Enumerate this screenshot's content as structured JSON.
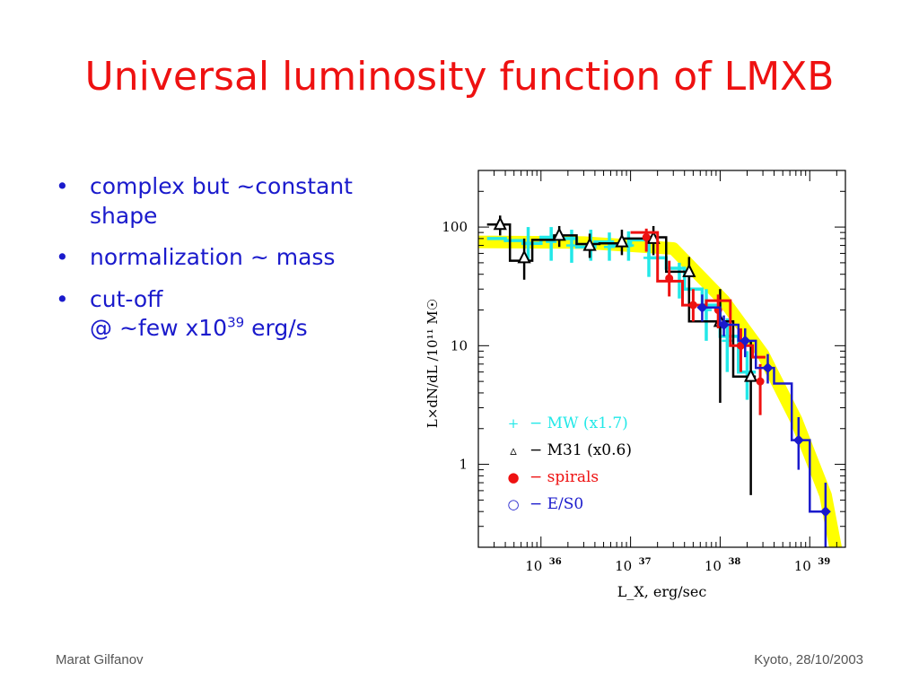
{
  "slide": {
    "title": "Universal luminosity function of LMXB",
    "bullets": [
      {
        "lines": [
          "complex but ~constant",
          "shape"
        ]
      },
      {
        "lines": [
          "normalization ~ mass"
        ]
      },
      {
        "lines": [
          "cut-off",
          "@ ~few x10"
        ],
        "sup": "39",
        "tail": " erg/s"
      }
    ],
    "footer_left": "Marat Gilfanov",
    "footer_right": "Kyoto, 28/10/2003"
  },
  "chart_data": {
    "type": "line",
    "xscale": "log",
    "yscale": "log",
    "xlim": [
      2e+35,
      2.5e+39
    ],
    "ylim": [
      0.2,
      300
    ],
    "xlabel": "L_X, erg/sec",
    "ylabel": "L×dN/dL /10¹¹ M☉",
    "xticks": [
      {
        "value": 1e+36,
        "base": "10",
        "exp": "36"
      },
      {
        "value": 1e+37,
        "base": "10",
        "exp": "37"
      },
      {
        "value": 1e+38,
        "base": "10",
        "exp": "38"
      },
      {
        "value": 1e+39,
        "base": "10",
        "exp": "39"
      }
    ],
    "yticks": [
      {
        "value": 1,
        "label": "1"
      },
      {
        "value": 10,
        "label": "10"
      },
      {
        "value": 100,
        "label": "100"
      }
    ],
    "grid": false,
    "legend_position": "lower-left",
    "band": {
      "color": "#ffff00",
      "x": [
        2e+35,
        3e+36,
        3e+37,
        1.1e+38,
        3e+38,
        7e+38,
        1.5e+39,
        2.2e+39
      ],
      "y": [
        75,
        74,
        66,
        24,
        8.5,
        2.4,
        0.55,
        0.12
      ]
    },
    "series": [
      {
        "name": "MW (x1.7)",
        "legend_symbol": "+",
        "legend_label": "− MW (x1.7)",
        "color": "#22e8e8",
        "marker": "plus",
        "steps": [
          [
            2.5e+35,
            4e+35,
            80
          ],
          [
            4e+35,
            6.3e+35,
            77
          ],
          [
            6.3e+35,
            1e+36,
            73
          ],
          [
            1e+36,
            1.6e+36,
            82
          ],
          [
            1.6e+36,
            2.5e+36,
            80
          ],
          [
            2.5e+36,
            4e+36,
            68
          ],
          [
            4e+36,
            6.3e+36,
            75
          ],
          [
            6.3e+36,
            1e+37,
            70
          ],
          [
            1e+37,
            1.6e+37,
            78
          ],
          [
            1.6e+37,
            2.5e+37,
            55
          ],
          [
            2.5e+37,
            4e+37,
            45
          ],
          [
            4e+37,
            6.3e+37,
            30
          ],
          [
            6.3e+37,
            1e+38,
            22
          ],
          [
            1e+38,
            1.6e+38,
            12
          ],
          [
            1.6e+38,
            2.5e+38,
            6
          ]
        ],
        "points": [
          {
            "x": 7.2e+35,
            "y": 72,
            "lo": 50,
            "hi": 100
          },
          {
            "x": 1.3e+36,
            "y": 75,
            "lo": 52,
            "hi": 100
          },
          {
            "x": 2.2e+36,
            "y": 70,
            "lo": 50,
            "hi": 95
          },
          {
            "x": 3.6e+36,
            "y": 72,
            "lo": 52,
            "hi": 95
          },
          {
            "x": 5.8e+36,
            "y": 68,
            "lo": 52,
            "hi": 90
          },
          {
            "x": 9.5e+36,
            "y": 70,
            "lo": 52,
            "hi": 92
          },
          {
            "x": 1.6e+37,
            "y": 55,
            "lo": 38,
            "hi": 75
          },
          {
            "x": 3.5e+37,
            "y": 35,
            "lo": 25,
            "hi": 50
          },
          {
            "x": 7e+37,
            "y": 20,
            "lo": 11,
            "hi": 30
          },
          {
            "x": 1.2e+38,
            "y": 11,
            "lo": 6,
            "hi": 17
          },
          {
            "x": 2e+38,
            "y": 6,
            "lo": 3.5,
            "hi": 9
          }
        ]
      },
      {
        "name": "M31 (x0.6)",
        "legend_symbol": "▵",
        "legend_label": "− M31 (x0.6)",
        "color": "#000000",
        "marker": "triangle",
        "steps": [
          [
            2.5e+35,
            4.5e+35,
            105
          ],
          [
            4.5e+35,
            8e+35,
            52
          ],
          [
            8e+35,
            1.4e+36,
            78
          ],
          [
            1.4e+36,
            2.5e+36,
            85
          ],
          [
            2.5e+36,
            4.5e+36,
            72
          ],
          [
            4.5e+36,
            8e+36,
            73
          ],
          [
            8e+36,
            1.4e+37,
            80
          ],
          [
            1.4e+37,
            2.5e+37,
            82
          ],
          [
            2.5e+37,
            4.5e+37,
            42
          ],
          [
            4.5e+37,
            8e+37,
            16
          ],
          [
            8e+37,
            1.4e+38,
            16
          ],
          [
            1.4e+38,
            2.5e+38,
            5.5
          ]
        ],
        "points": [
          {
            "x": 3.5e+35,
            "y": 105,
            "lo": 85,
            "hi": 125
          },
          {
            "x": 6.5e+35,
            "y": 55,
            "lo": 36,
            "hi": 80
          },
          {
            "x": 1.6e+36,
            "y": 85,
            "lo": 68,
            "hi": 102
          },
          {
            "x": 3.5e+36,
            "y": 70,
            "lo": 55,
            "hi": 88
          },
          {
            "x": 8e+36,
            "y": 75,
            "lo": 58,
            "hi": 95
          },
          {
            "x": 1.8e+37,
            "y": 80,
            "lo": 58,
            "hi": 102
          },
          {
            "x": 4.5e+37,
            "y": 42,
            "lo": 28,
            "hi": 56
          },
          {
            "x": 1e+38,
            "y": 16,
            "lo": 3.3,
            "hi": 30
          },
          {
            "x": 2.2e+38,
            "y": 5.5,
            "lo": 0.55,
            "hi": 11
          }
        ]
      },
      {
        "name": "spirals",
        "legend_symbol": "●",
        "legend_label": "− spirals",
        "color": "#ee1111",
        "marker": "dot",
        "steps": [
          [
            1e+37,
            2e+37,
            90
          ],
          [
            2e+37,
            3.8e+37,
            35
          ],
          [
            3.8e+37,
            7e+37,
            22
          ],
          [
            7e+37,
            1.3e+38,
            24
          ],
          [
            1.3e+38,
            2.3e+38,
            10
          ],
          [
            2.3e+38,
            3.2e+38,
            8
          ]
        ],
        "points": [
          {
            "x": 1.5e+37,
            "y": 82,
            "lo": 62,
            "hi": 97
          },
          {
            "x": 2.7e+37,
            "y": 37,
            "lo": 26,
            "hi": 52
          },
          {
            "x": 5e+37,
            "y": 22,
            "lo": 16,
            "hi": 30
          },
          {
            "x": 9.5e+37,
            "y": 20,
            "lo": 14,
            "hi": 27
          },
          {
            "x": 1.7e+38,
            "y": 10,
            "lo": 6,
            "hi": 14
          },
          {
            "x": 2.8e+38,
            "y": 5,
            "lo": 2.6,
            "hi": 7
          }
        ]
      },
      {
        "name": "E/S0",
        "legend_symbol": "○",
        "legend_label": "− E/S0",
        "color": "#1a1acc",
        "marker": "diamond",
        "steps": [
          [
            6e+37,
            1e+38,
            21
          ],
          [
            1e+38,
            1.6e+38,
            15
          ],
          [
            1.6e+38,
            2.5e+38,
            11
          ],
          [
            2.5e+38,
            4e+38,
            6.5
          ],
          [
            4e+38,
            6.3e+38,
            4.8
          ],
          [
            6.3e+38,
            1e+39,
            1.6
          ],
          [
            1e+39,
            1.6e+39,
            0.4
          ]
        ],
        "points": [
          {
            "x": 6.3e+37,
            "y": 21,
            "lo": 16,
            "hi": 27
          },
          {
            "x": 1.1e+38,
            "y": 15,
            "lo": 12,
            "hi": 18
          },
          {
            "x": 1.9e+38,
            "y": 11,
            "lo": 8,
            "hi": 14
          },
          {
            "x": 3.4e+38,
            "y": 6.5,
            "lo": 4.8,
            "hi": 8.5
          },
          {
            "x": 7.5e+38,
            "y": 1.6,
            "lo": 0.9,
            "hi": 2.5
          },
          {
            "x": 1.5e+39,
            "y": 0.4,
            "lo": 0.2,
            "hi": 0.7
          }
        ]
      }
    ]
  }
}
